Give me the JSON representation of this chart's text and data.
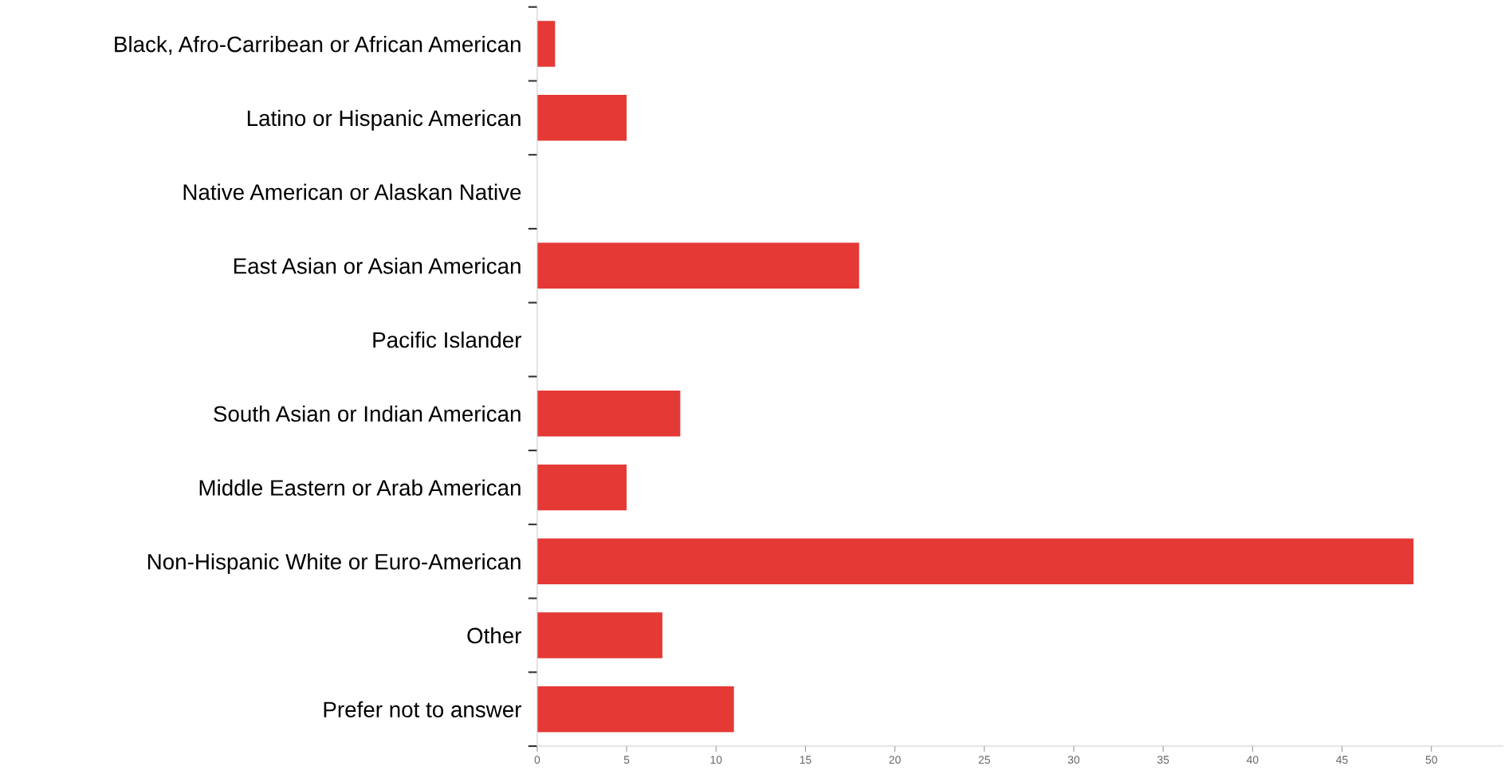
{
  "chart_data": {
    "type": "bar",
    "orientation": "horizontal",
    "categories": [
      "Black, Afro-Carribean or African American",
      "Latino or Hispanic American",
      "Native American or Alaskan Native",
      "East Asian or Asian American",
      "Pacific Islander",
      "South Asian or Indian American",
      "Middle Eastern or Arab American",
      "Non-Hispanic White or Euro-American",
      "Other",
      "Prefer not to answer"
    ],
    "values": [
      1,
      5,
      0,
      18,
      0,
      8,
      5,
      49,
      7,
      11
    ],
    "color": "#e53935",
    "xlim": [
      0,
      54
    ],
    "xticks": [
      0,
      5,
      10,
      15,
      20,
      25,
      30,
      35,
      40,
      45,
      50
    ],
    "grid": false,
    "legend": false
  }
}
